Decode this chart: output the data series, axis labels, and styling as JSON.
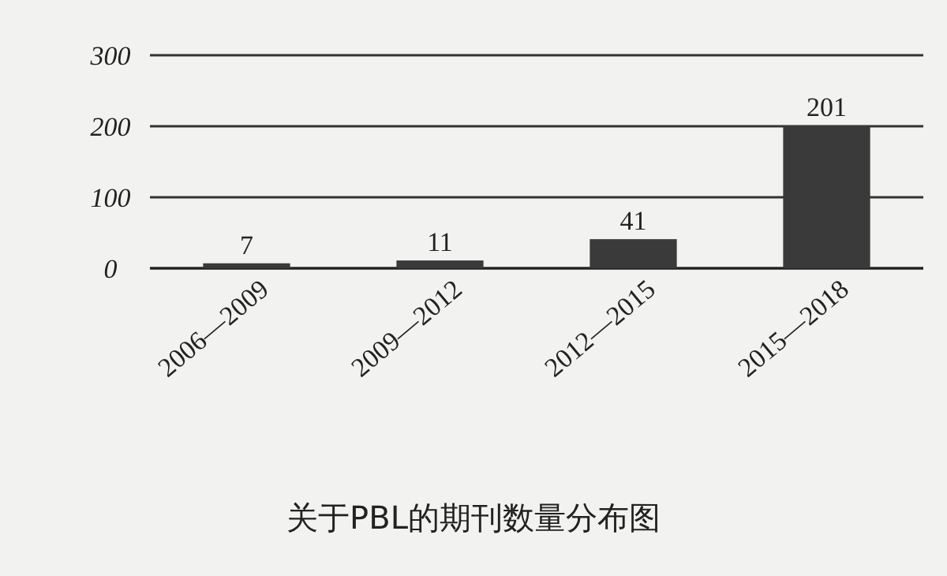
{
  "chart_data": {
    "type": "bar",
    "title": "关于PBL的期刊数量分布图",
    "categories": [
      "2006—2009",
      "2009—2012",
      "2012—2015",
      "2015—2018"
    ],
    "values": [
      7,
      11,
      41,
      201
    ],
    "color": "#3a3a3a",
    "ylim": [
      0,
      300
    ],
    "yticks": [
      0,
      100,
      200,
      300
    ],
    "grid": "y",
    "data_labels": true
  }
}
